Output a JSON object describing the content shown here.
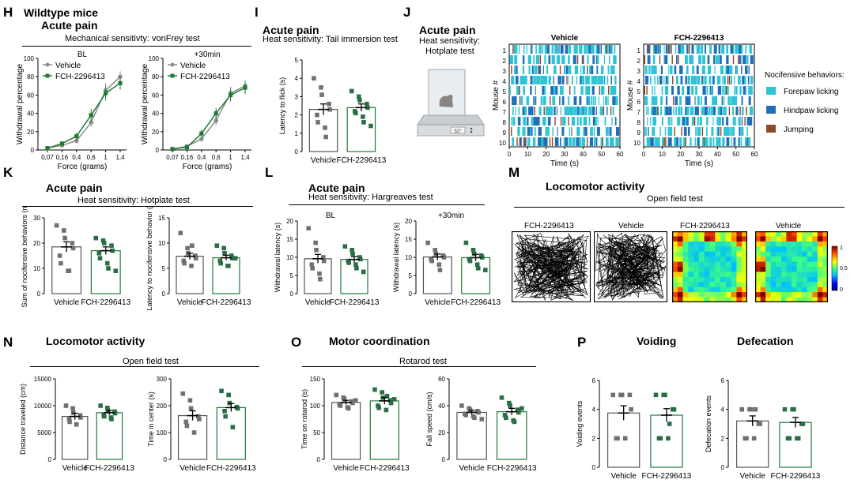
{
  "colors": {
    "vehicle": "#8c8c8c",
    "fch": "#1f7a36",
    "fch_marker": "#2a6e45",
    "gray_marker": "#707070",
    "cyan": "#2ec4d6",
    "blue": "#1f6fb8",
    "brown": "#8b4a2b"
  },
  "panels": {
    "H": {
      "letter": "H",
      "group": "Wildtype mice",
      "title": "Acute pain",
      "subtitle": "Mechanical sensitivty: vonFrey test"
    },
    "I": {
      "letter": "I",
      "title": "Acute pain",
      "subtitle": "Heat sensitivity: Tail immersion test"
    },
    "J": {
      "letter": "J",
      "title": "Acute pain",
      "subtitle_line1": "Heat sensitivity:",
      "subtitle_line2": "Hotplate test",
      "device_display": "52°"
    },
    "K": {
      "letter": "K",
      "title": "Acute pain",
      "subtitle": "Heat sensitivity: Hotplate test"
    },
    "L": {
      "letter": "L",
      "title": "Acute pain",
      "subtitle": "Heat sensitivity: Hargreaves test"
    },
    "M": {
      "letter": "M",
      "title": "Locomotor activity",
      "subtitle": "Open field test",
      "labels": [
        "FCH-2296413",
        "Vehicle",
        "FCH-2296413",
        "Vehicle"
      ],
      "colorbar_ticks": [
        "1",
        "0.5",
        "0"
      ]
    },
    "N": {
      "letter": "N",
      "title": "Locomotor activity",
      "subtitle": "Open field test"
    },
    "O": {
      "letter": "O",
      "title": "Motor coordination",
      "subtitle": "Rotarod test"
    },
    "P": {
      "letter": "P",
      "title_left": "Voiding",
      "title_right": "Defecation"
    }
  },
  "chart_data": [
    {
      "id": "H1",
      "type": "line",
      "title": "BL",
      "xlabel": "Force (grams)",
      "ylabel": "Withdrawal percentage",
      "categories": [
        "0,07",
        "0,16",
        "0,4",
        "0,6",
        "1",
        "1,4"
      ],
      "ylim": [
        0,
        100
      ],
      "yticks": [
        0,
        20,
        40,
        60,
        80,
        100
      ],
      "legend": [
        "Vehicle",
        "FCH-2296413"
      ],
      "series": [
        {
          "name": "Vehicle",
          "values": [
            2,
            5,
            10,
            30,
            65,
            80
          ],
          "errors": [
            1,
            2,
            3,
            5,
            8,
            6
          ]
        },
        {
          "name": "FCH-2296413",
          "values": [
            2,
            7,
            15,
            38,
            62,
            73
          ],
          "errors": [
            1,
            2,
            4,
            7,
            8,
            7
          ]
        }
      ]
    },
    {
      "id": "H2",
      "type": "line",
      "title": "+30min",
      "xlabel": "Force (grams)",
      "ylabel": "Withdrawal percentage",
      "categories": [
        "0,07",
        "0,16",
        "0,4",
        "0,6",
        "1",
        "1,4"
      ],
      "ylim": [
        0,
        100
      ],
      "yticks": [
        0,
        20,
        40,
        60,
        80,
        100
      ],
      "legend": [
        "Vehicle",
        "FCH-2296413"
      ],
      "series": [
        {
          "name": "Vehicle",
          "values": [
            1,
            4,
            12,
            32,
            62,
            70
          ],
          "errors": [
            1,
            2,
            3,
            5,
            7,
            6
          ]
        },
        {
          "name": "FCH-2296413",
          "values": [
            1,
            3,
            18,
            40,
            60,
            68
          ],
          "errors": [
            1,
            2,
            4,
            6,
            7,
            7
          ]
        }
      ]
    },
    {
      "id": "I",
      "type": "bar",
      "ylabel": "Latency to flick (s)",
      "categories": [
        "Vehicle",
        "FCH-2296413"
      ],
      "ylim": [
        0,
        5
      ],
      "yticks": [
        0,
        1,
        2,
        3,
        4,
        5
      ],
      "values": [
        2.3,
        2.4
      ],
      "errors": [
        0.3,
        0.2
      ],
      "points": [
        [
          4.0,
          3.5,
          3.1,
          2.6,
          2.3,
          2.0,
          1.6,
          1.3,
          0.8
        ],
        [
          3.3,
          3.0,
          2.8,
          2.6,
          2.4,
          2.2,
          2.1,
          1.9,
          1.6,
          1.4
        ]
      ]
    },
    {
      "id": "J1",
      "type": "raster",
      "title": "Vehicle",
      "xlabel": "Time (s)",
      "ylabel": "Mouse #",
      "rows": [
        "1",
        "2",
        "3",
        "4",
        "5",
        "6",
        "7",
        "8",
        "9",
        "10"
      ],
      "xlim": [
        0,
        60
      ],
      "xticks": [
        0,
        10,
        20,
        30,
        40,
        50,
        60
      ],
      "legend_title": "Nocifensive behaviors:",
      "legend": [
        "Forepaw licking",
        "Hindpaw licking",
        "Jumping"
      ]
    },
    {
      "id": "J2",
      "type": "raster",
      "title": "FCH-2296413",
      "xlabel": "Time (s)",
      "ylabel": "Mouse #",
      "rows": [
        "1",
        "2",
        "3",
        "4",
        "5",
        "6",
        "7",
        "8",
        "9",
        "10"
      ],
      "xlim": [
        0,
        60
      ],
      "xticks": [
        0,
        10,
        20,
        30,
        40,
        50,
        60
      ]
    },
    {
      "id": "K1",
      "type": "bar",
      "ylabel": "Sum of nocifensive behaviors (n)",
      "categories": [
        "Vehicle",
        "FCH-2296413"
      ],
      "ylim": [
        0,
        30
      ],
      "yticks": [
        0,
        10,
        20,
        30
      ],
      "values": [
        18.5,
        17
      ],
      "errors": [
        2,
        1.5
      ],
      "points": [
        [
          27,
          25,
          22,
          20,
          18,
          15,
          12,
          9,
          9
        ],
        [
          22,
          21,
          20,
          19,
          17,
          16,
          14,
          12,
          10,
          9
        ]
      ]
    },
    {
      "id": "K2",
      "type": "bar",
      "ylabel": "Latency to nocifensive behavior (s)",
      "categories": [
        "Vehicle",
        "FCH-2296413"
      ],
      "ylim": [
        0,
        15
      ],
      "yticks": [
        0,
        5,
        10,
        15
      ],
      "values": [
        7.4,
        7.1
      ],
      "errors": [
        0.6,
        0.5
      ],
      "points": [
        [
          12,
          9,
          8,
          7.5,
          7,
          6.5,
          6,
          5.5,
          9.5
        ],
        [
          9.5,
          9,
          8,
          7.5,
          7,
          6.5,
          6,
          5.5,
          5.5,
          7
        ]
      ]
    },
    {
      "id": "L1",
      "type": "bar",
      "title": "BL",
      "ylabel": "Withdrawal latency (s)",
      "categories": [
        "Vehicle",
        "FCH-2296413"
      ],
      "ylim": [
        0,
        20
      ],
      "yticks": [
        0,
        5,
        10,
        15,
        20
      ],
      "values": [
        9.6,
        9.4
      ],
      "errors": [
        1.2,
        0.8
      ],
      "points": [
        [
          18,
          14,
          12,
          10,
          9,
          8,
          7,
          5.5,
          4
        ],
        [
          13,
          12,
          11,
          10,
          9.5,
          9,
          8.5,
          8,
          7,
          6
        ]
      ]
    },
    {
      "id": "L2",
      "type": "bar",
      "title": "+30min",
      "ylabel": "Withdrawal latency (s)",
      "categories": [
        "Vehicle",
        "FCH-2296413"
      ],
      "ylim": [
        0,
        20
      ],
      "yticks": [
        0,
        5,
        10,
        15,
        20
      ],
      "values": [
        10.1,
        9.9
      ],
      "errors": [
        0.8,
        0.9
      ],
      "points": [
        [
          14,
          12,
          11,
          10.5,
          10,
          9.5,
          9,
          8,
          6.5
        ],
        [
          14,
          12,
          11,
          10.5,
          10,
          9.5,
          9,
          8,
          7,
          6.5
        ]
      ]
    },
    {
      "id": "N1",
      "type": "bar",
      "ylabel": "Distance traveled (cm)",
      "categories": [
        "Vehicle",
        "FCH-2296413"
      ],
      "ylim": [
        0,
        15000
      ],
      "yticks": [
        0,
        5000,
        10000,
        15000
      ],
      "values": [
        8000,
        8700
      ],
      "errors": [
        600,
        400
      ],
      "points": [
        [
          10000,
          9500,
          8700,
          8200,
          7800,
          7500,
          7000,
          6500
        ],
        [
          10000,
          9600,
          9200,
          8900,
          8600,
          8300,
          8000,
          7800,
          7500
        ]
      ]
    },
    {
      "id": "N2",
      "type": "bar",
      "ylabel": "Time in center (s)",
      "categories": [
        "Vehicle",
        "FCH-2296413"
      ],
      "ylim": [
        0,
        300
      ],
      "yticks": [
        0,
        100,
        200,
        300
      ],
      "values": [
        163,
        193
      ],
      "errors": [
        18,
        15
      ],
      "points": [
        [
          245,
          220,
          190,
          160,
          150,
          140,
          125,
          100
        ],
        [
          255,
          240,
          210,
          195,
          190,
          180,
          160,
          120
        ]
      ]
    },
    {
      "id": "O1",
      "type": "bar",
      "ylabel": "Time on rotarod (s)",
      "categories": [
        "Vehicle",
        "FCH-2296413"
      ],
      "ylim": [
        0,
        150
      ],
      "yticks": [
        0,
        50,
        100,
        150
      ],
      "values": [
        106,
        109
      ],
      "errors": [
        4,
        6
      ],
      "points": [
        [
          120,
          115,
          112,
          108,
          105,
          103,
          100,
          97,
          95,
          110
        ],
        [
          130,
          125,
          115,
          110,
          105,
          100,
          96,
          92,
          118,
          112
        ]
      ]
    },
    {
      "id": "O2",
      "type": "bar",
      "ylabel": "Fall speed (cm/s)",
      "categories": [
        "Vehicle",
        "FCH-2296413"
      ],
      "ylim": [
        0,
        60
      ],
      "yticks": [
        0,
        20,
        40,
        60
      ],
      "values": [
        35,
        35.5
      ],
      "errors": [
        1.5,
        2.5
      ],
      "points": [
        [
          40,
          38,
          37,
          36,
          35,
          34,
          33,
          32,
          31,
          30
        ],
        [
          46,
          42,
          40,
          37,
          35,
          33,
          31,
          29,
          28,
          38
        ]
      ]
    },
    {
      "id": "P1",
      "type": "bar",
      "ylabel": "Voiding events",
      "categories": [
        "Vehicle",
        "FCH-2296413"
      ],
      "ylim": [
        0,
        6
      ],
      "yticks": [
        0,
        2,
        4,
        6
      ],
      "values": [
        3.75,
        3.6
      ],
      "errors": [
        0.5,
        0.45
      ],
      "points": [
        [
          5,
          5,
          5,
          5,
          4,
          2,
          2,
          2
        ],
        [
          5,
          5,
          5,
          4,
          4,
          2,
          2,
          2,
          3
        ]
      ]
    },
    {
      "id": "P2",
      "type": "bar",
      "ylabel": "Defecation events",
      "categories": [
        "Vehicle",
        "FCH-2296413"
      ],
      "ylim": [
        0,
        6
      ],
      "yticks": [
        0,
        2,
        4,
        6
      ],
      "values": [
        3.2,
        3.1
      ],
      "errors": [
        0.35,
        0.35
      ],
      "points": [
        [
          4,
          4,
          4,
          3,
          3,
          2,
          2,
          2,
          4
        ],
        [
          4,
          4,
          4,
          3,
          3,
          2,
          2,
          2,
          2
        ]
      ]
    }
  ]
}
